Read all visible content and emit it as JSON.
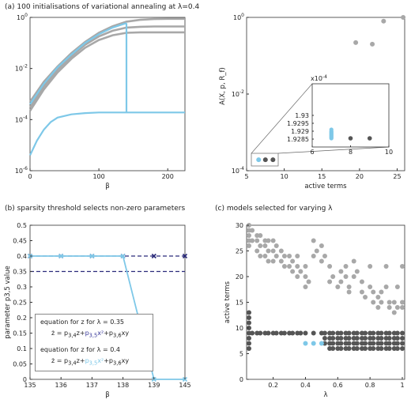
{
  "titles": {
    "a": "(a) 100 initialisations of variational annealing at λ=0.4",
    "b": "(b) sparsity threshold selects non-zero parameters",
    "c": "(c) models selected for varying λ"
  },
  "colors": {
    "gray": "#a8a8a8",
    "dark": "#555555",
    "cyan": "#7ec8e8",
    "navy": "#2b2b7a"
  },
  "chart_data": [
    {
      "type": "line",
      "panel": "a-left",
      "xlabel": "β",
      "ylabel": "",
      "xlim": [
        0,
        225
      ],
      "ylim": [
        1e-06,
        1
      ],
      "yscale": "log",
      "xticks": [
        "0",
        "100",
        "200"
      ],
      "yticks": [
        "10^0",
        "10^-2",
        "10^-4",
        "10^-6"
      ],
      "series": [
        {
          "color": "gray",
          "x": [
            0,
            20,
            40,
            60,
            80,
            100,
            120,
            140,
            160,
            180,
            200,
            225
          ],
          "y": [
            0.0005,
            0.003,
            0.012,
            0.04,
            0.11,
            0.25,
            0.45,
            0.68,
            0.8,
            0.86,
            0.88,
            0.88
          ]
        },
        {
          "color": "gray",
          "x": [
            0,
            20,
            40,
            60,
            80,
            100,
            120,
            140,
            160,
            180,
            200,
            225
          ],
          "y": [
            0.0003,
            0.002,
            0.009,
            0.03,
            0.085,
            0.18,
            0.3,
            0.4,
            0.43,
            0.44,
            0.44,
            0.44
          ]
        },
        {
          "color": "gray",
          "x": [
            0,
            20,
            40,
            60,
            80,
            100,
            120,
            140,
            160,
            180,
            200,
            225
          ],
          "y": [
            0.00022,
            0.0015,
            0.007,
            0.024,
            0.065,
            0.13,
            0.2,
            0.25,
            0.26,
            0.26,
            0.26,
            0.26
          ]
        },
        {
          "color": "cyan",
          "x": [
            0,
            20,
            40,
            60,
            80,
            100,
            120,
            140
          ],
          "y": [
            0.0004,
            0.0025,
            0.011,
            0.035,
            0.1,
            0.22,
            0.4,
            0.6
          ]
        },
        {
          "color": "cyan",
          "x": [
            140,
            140
          ],
          "y": [
            0.6,
            0.00019
          ]
        },
        {
          "color": "cyan",
          "x": [
            0,
            10,
            20,
            30,
            40,
            60,
            80,
            100,
            140,
            180,
            225
          ],
          "y": [
            4e-06,
            1.5e-05,
            4e-05,
            8e-05,
            0.00012,
            0.00016,
            0.00018,
            0.00019,
            0.00019,
            0.00019,
            0.00019
          ]
        }
      ]
    },
    {
      "type": "scatter",
      "panel": "a-right",
      "xlabel": "active terms",
      "ylabel": "A(X, p, R_f)",
      "xlim": [
        5,
        26
      ],
      "ylim": [
        0.0001,
        1
      ],
      "yscale": "log",
      "xticks": [
        "5",
        "10",
        "15",
        "20",
        "25"
      ],
      "yticks": [
        "10^0",
        "10^-2",
        "10^-4"
      ],
      "points": [
        {
          "x": 19.5,
          "y": 0.22,
          "color": "gray"
        },
        {
          "x": 21.7,
          "y": 0.2,
          "color": "gray"
        },
        {
          "x": 23.2,
          "y": 0.8,
          "color": "gray"
        },
        {
          "x": 25.8,
          "y": 1.0,
          "color": "gray"
        },
        {
          "x": 6.6,
          "y": 0.000193,
          "color": "cyan"
        },
        {
          "x": 7.5,
          "y": 0.000193,
          "color": "dark"
        },
        {
          "x": 8.5,
          "y": 0.000193,
          "color": "dark"
        }
      ],
      "inset": {
        "exponent_label": "x10^-4",
        "xlim": [
          6,
          10
        ],
        "ylim": [
          1.928,
          1.932
        ],
        "xticks": [
          "6",
          "8",
          "10"
        ],
        "yticks": [
          "1.93",
          "1.9295",
          "1.929",
          "1.9285"
        ],
        "cyan_x": 7,
        "cyan_y": [
          1.9291,
          1.929,
          1.92895,
          1.9289,
          1.92885,
          1.9288,
          1.92875,
          1.9287,
          1.92865,
          1.9286,
          1.92855
        ],
        "dark_points": [
          [
            8,
            1.92855
          ],
          [
            9,
            1.92855
          ]
        ]
      }
    },
    {
      "type": "line",
      "panel": "b",
      "xlabel": "β",
      "ylabel": "parameter p3,5 value",
      "xlim": [
        135,
        145
      ],
      "ylim": [
        0,
        0.5
      ],
      "categories": [
        "135",
        "136",
        "137",
        "138",
        "139",
        "145"
      ],
      "yticks": [
        "0",
        "0.05",
        "0.1",
        "0.15",
        "0.2",
        "0.25",
        "0.3",
        "0.35",
        "0.4",
        "0.45",
        "0.5"
      ],
      "series": [
        {
          "color": "navy",
          "style": "dashed-x",
          "values": [
            0.4,
            0.4,
            0.4,
            0.4,
            0.4,
            0.4
          ]
        },
        {
          "color": "cyan",
          "style": "solid-x",
          "values": [
            0.4,
            0.4,
            0.4,
            0.4,
            0.0,
            0.0
          ]
        }
      ],
      "threshold": 0.35,
      "legend": {
        "l1": "equation for z for λ = 0.35",
        "e1a": "ż = p",
        "e1s1": "3,4",
        "e1b": "z+",
        "e1c": "p",
        "e1s2": "3,5",
        "e1d": "x²",
        "e1e": "+p",
        "e1s3": "3,6",
        "e1f": "xy",
        "l2": "equation for z for λ = 0.4",
        "e2a": "ż = p",
        "e2s1": "3,4",
        "e2b": "z+",
        "e2c": "p",
        "e2s2": "3,5",
        "e2d": "x²",
        "e2e": "+p",
        "e2s3": "3,6",
        "e2f": "xy"
      }
    },
    {
      "type": "scatter",
      "panel": "c",
      "xlabel": "λ",
      "ylabel": "active terms",
      "xlim": [
        0.05,
        1.0
      ],
      "ylim": [
        0,
        30
      ],
      "xticks": [
        "0.2",
        "0.4",
        "0.6",
        "0.8",
        "1"
      ],
      "yticks": [
        "0",
        "5",
        "10",
        "15",
        "20",
        "25",
        "30"
      ],
      "light": [
        [
          0.05,
          30
        ],
        [
          0.05,
          29
        ],
        [
          0.05,
          28
        ],
        [
          0.05,
          27
        ],
        [
          0.05,
          26
        ],
        [
          0.07,
          29
        ],
        [
          0.07,
          27
        ],
        [
          0.1,
          28
        ],
        [
          0.1,
          27
        ],
        [
          0.1,
          25
        ],
        [
          0.12,
          28
        ],
        [
          0.12,
          26
        ],
        [
          0.12,
          24
        ],
        [
          0.15,
          27
        ],
        [
          0.15,
          26
        ],
        [
          0.15,
          24
        ],
        [
          0.17,
          27
        ],
        [
          0.17,
          25
        ],
        [
          0.17,
          23
        ],
        [
          0.2,
          27
        ],
        [
          0.2,
          25
        ],
        [
          0.2,
          23
        ],
        [
          0.22,
          26
        ],
        [
          0.22,
          24
        ],
        [
          0.25,
          25
        ],
        [
          0.25,
          23
        ],
        [
          0.27,
          24
        ],
        [
          0.27,
          22
        ],
        [
          0.3,
          24
        ],
        [
          0.3,
          22
        ],
        [
          0.32,
          23
        ],
        [
          0.32,
          21
        ],
        [
          0.35,
          24
        ],
        [
          0.35,
          22
        ],
        [
          0.35,
          20
        ],
        [
          0.37,
          21
        ],
        [
          0.4,
          22
        ],
        [
          0.4,
          20
        ],
        [
          0.4,
          18
        ],
        [
          0.42,
          19
        ],
        [
          0.45,
          27
        ],
        [
          0.45,
          24
        ],
        [
          0.47,
          25
        ],
        [
          0.5,
          26
        ],
        [
          0.5,
          23
        ],
        [
          0.52,
          24
        ],
        [
          0.55,
          22
        ],
        [
          0.55,
          19
        ],
        [
          0.57,
          20
        ],
        [
          0.6,
          18
        ],
        [
          0.62,
          21
        ],
        [
          0.62,
          19
        ],
        [
          0.65,
          20
        ],
        [
          0.65,
          22
        ],
        [
          0.67,
          18
        ],
        [
          0.67,
          17
        ],
        [
          0.7,
          23
        ],
        [
          0.7,
          20
        ],
        [
          0.72,
          21
        ],
        [
          0.75,
          19
        ],
        [
          0.75,
          17
        ],
        [
          0.77,
          16
        ],
        [
          0.8,
          22
        ],
        [
          0.8,
          18
        ],
        [
          0.82,
          17
        ],
        [
          0.82,
          15
        ],
        [
          0.85,
          16
        ],
        [
          0.85,
          14
        ],
        [
          0.87,
          15
        ],
        [
          0.87,
          17
        ],
        [
          0.9,
          22
        ],
        [
          0.9,
          18
        ],
        [
          0.92,
          15
        ],
        [
          0.92,
          14
        ],
        [
          0.95,
          13
        ],
        [
          0.95,
          15
        ],
        [
          0.97,
          18
        ],
        [
          0.97,
          14
        ],
        [
          1.0,
          22
        ],
        [
          1.0,
          15
        ],
        [
          1.0,
          14
        ]
      ],
      "dark_cols": {
        "x": [
          0.05,
          0.07,
          0.1,
          0.12,
          0.15,
          0.17,
          0.2,
          0.22,
          0.25,
          0.27,
          0.3,
          0.32,
          0.35,
          0.37,
          0.4,
          0.45,
          0.5,
          0.52,
          0.55,
          0.57,
          0.6,
          0.62,
          0.65,
          0.67,
          0.7,
          0.72,
          0.75,
          0.77,
          0.8,
          0.82,
          0.85,
          0.87,
          0.9,
          0.92,
          0.95,
          0.97,
          1.0
        ],
        "y": [
          9
        ]
      },
      "dark_extra": [
        [
          0.05,
          13
        ],
        [
          0.05,
          12
        ],
        [
          0.05,
          11
        ],
        [
          0.05,
          10
        ],
        [
          0.05,
          8
        ],
        [
          0.05,
          7
        ],
        [
          0.05,
          6
        ],
        [
          0.52,
          8
        ],
        [
          0.52,
          7
        ],
        [
          0.55,
          8
        ],
        [
          0.55,
          7
        ],
        [
          0.55,
          6
        ],
        [
          0.57,
          8
        ],
        [
          0.57,
          7
        ],
        [
          0.57,
          6
        ],
        [
          0.6,
          8
        ],
        [
          0.6,
          7
        ],
        [
          0.6,
          6
        ],
        [
          0.62,
          8
        ],
        [
          0.62,
          7
        ],
        [
          0.62,
          6
        ],
        [
          0.65,
          8
        ],
        [
          0.65,
          7
        ],
        [
          0.65,
          6
        ],
        [
          0.67,
          8
        ],
        [
          0.67,
          7
        ],
        [
          0.67,
          6
        ],
        [
          0.7,
          8
        ],
        [
          0.7,
          7
        ],
        [
          0.7,
          6
        ],
        [
          0.72,
          8
        ],
        [
          0.72,
          7
        ],
        [
          0.72,
          6
        ],
        [
          0.75,
          8
        ],
        [
          0.75,
          7
        ],
        [
          0.75,
          6
        ],
        [
          0.77,
          8
        ],
        [
          0.77,
          7
        ],
        [
          0.77,
          6
        ],
        [
          0.8,
          8
        ],
        [
          0.8,
          7
        ],
        [
          0.8,
          6
        ],
        [
          0.82,
          8
        ],
        [
          0.82,
          7
        ],
        [
          0.82,
          6
        ],
        [
          0.85,
          8
        ],
        [
          0.85,
          7
        ],
        [
          0.85,
          6
        ],
        [
          0.87,
          8
        ],
        [
          0.87,
          7
        ],
        [
          0.87,
          6
        ],
        [
          0.9,
          8
        ],
        [
          0.9,
          7
        ],
        [
          0.9,
          6
        ],
        [
          0.92,
          8
        ],
        [
          0.92,
          7
        ],
        [
          0.92,
          6
        ],
        [
          0.95,
          8
        ],
        [
          0.95,
          7
        ],
        [
          0.95,
          6
        ],
        [
          0.97,
          8
        ],
        [
          0.97,
          7
        ],
        [
          0.97,
          6
        ],
        [
          1.0,
          8
        ],
        [
          1.0,
          7
        ],
        [
          1.0,
          6
        ]
      ],
      "cyan": [
        [
          0.4,
          7
        ],
        [
          0.45,
          7
        ],
        [
          0.5,
          7
        ]
      ]
    }
  ]
}
